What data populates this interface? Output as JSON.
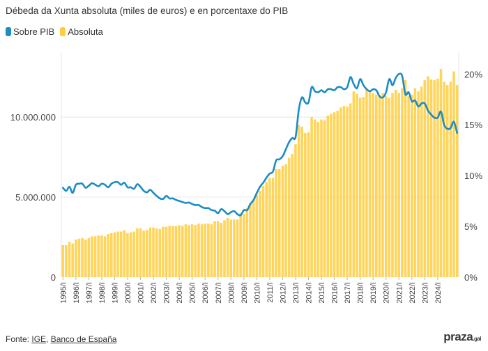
{
  "title": "Débeda da Xunta absoluta (miles de euros) e en porcentaxe do PIB",
  "legend": [
    {
      "label": "Sobre PIB",
      "color": "#1b8cc4"
    },
    {
      "label": "Absoluta",
      "color": "#ffcd3c"
    }
  ],
  "footer": {
    "prefix": "Fonte: ",
    "sources": [
      "IGE",
      "Banco de España"
    ],
    "logo": "praza",
    "logo_suffix": ".gal"
  },
  "chart_data": {
    "type": "bar+line",
    "title": "Débeda da Xunta absoluta (miles de euros) e en porcentaxe do PIB",
    "x_start": "1995/I",
    "x_frequency": "quarterly",
    "x_tick_labels": [
      "1995/I",
      "1996/I",
      "1997/I",
      "1998/I",
      "1999/I",
      "2000/I",
      "2001/I",
      "2002/I",
      "2003/I",
      "2004/I",
      "2005/I",
      "2006/I",
      "2007/I",
      "2008/I",
      "2009/I",
      "2010/I",
      "2011/I",
      "2012/I",
      "2013/I",
      "2014/I",
      "2015/I",
      "2016/I",
      "2017/I",
      "2018/I",
      "2019/I",
      "2020/I",
      "2021/I",
      "2022/I",
      "2023/I",
      "2024/I"
    ],
    "left_axis": {
      "ticks": [
        0,
        5000000,
        10000000
      ],
      "tick_labels": [
        "0",
        "5.000.000",
        "10.000.000"
      ],
      "ylim": [
        0,
        13830000
      ]
    },
    "right_axis": {
      "ticks": [
        0,
        5,
        10,
        15,
        20
      ],
      "tick_labels": [
        "0%",
        "5%",
        "10%",
        "15%",
        "20%"
      ],
      "ylim": [
        0,
        21.8
      ]
    },
    "grid": true,
    "legend_position": "top-left",
    "series": [
      {
        "name": "Absoluta",
        "type": "bar",
        "axis": "left",
        "color": "#ffcd3c",
        "values": [
          2000000,
          2000000,
          2200000,
          2100000,
          2350000,
          2400000,
          2450000,
          2350000,
          2450000,
          2550000,
          2550000,
          2600000,
          2600000,
          2550000,
          2700000,
          2750000,
          2800000,
          2850000,
          2850000,
          2950000,
          2750000,
          2800000,
          2850000,
          3050000,
          3050000,
          2900000,
          2950000,
          3100000,
          3100000,
          3050000,
          3000000,
          3150000,
          3150000,
          3200000,
          3200000,
          3200000,
          3250000,
          3200000,
          3300000,
          3250000,
          3300000,
          3250000,
          3350000,
          3300000,
          3350000,
          3350000,
          3300000,
          3500000,
          3500000,
          3400000,
          3550000,
          3700000,
          3600000,
          3600000,
          3600000,
          4000000,
          3950000,
          4300000,
          4600000,
          4850000,
          5150000,
          5400000,
          5700000,
          5950000,
          6200000,
          6200000,
          6750000,
          6750000,
          6950000,
          7050000,
          7450000,
          7700000,
          8300000,
          9500000,
          9400000,
          9000000,
          9050000,
          10000000,
          9850000,
          9700000,
          9850000,
          9800000,
          10100000,
          10200000,
          10300000,
          10400000,
          10600000,
          10700000,
          10650000,
          10850000,
          11600000,
          11450000,
          11200000,
          11250000,
          11750000,
          11550000,
          11500000,
          11400000,
          11350000,
          11500000,
          11300000,
          11200000,
          11500000,
          11700000,
          11500000,
          11800000,
          12300000,
          11300000,
          11400000,
          11800000,
          11600000,
          11900000,
          12300000,
          12550000,
          12350000,
          12300000,
          12400000,
          13000000,
          12200000,
          12000000,
          12200000,
          12850000,
          12000000
        ]
      },
      {
        "name": "Sobre PIB",
        "type": "line",
        "axis": "right",
        "color": "#1b8cc4",
        "values": [
          8.8,
          8.5,
          8.9,
          8.3,
          9.1,
          9.2,
          9.2,
          8.8,
          9.0,
          9.25,
          9.1,
          8.95,
          9.2,
          9.1,
          8.85,
          9.2,
          9.35,
          9.35,
          9.1,
          9.3,
          8.85,
          8.85,
          8.7,
          9.15,
          8.9,
          8.5,
          8.35,
          8.6,
          8.3,
          8.0,
          7.75,
          7.7,
          8.0,
          7.75,
          7.75,
          7.6,
          7.5,
          7.4,
          7.3,
          7.35,
          7.2,
          7.1,
          7.1,
          6.9,
          6.8,
          6.8,
          6.6,
          6.55,
          6.3,
          6.7,
          6.5,
          6.2,
          6.4,
          6.5,
          6.2,
          6.1,
          6.6,
          6.6,
          7.2,
          7.6,
          8.3,
          8.9,
          9.3,
          9.8,
          10.2,
          10.4,
          11.5,
          11.6,
          11.9,
          12.6,
          13.3,
          13.7,
          13.8,
          16.5,
          17.7,
          17.2,
          17.2,
          18.7,
          18.3,
          18.2,
          18.4,
          18.2,
          18.5,
          18.5,
          18.4,
          18.7,
          18.7,
          18.5,
          18.7,
          19.7,
          19.0,
          18.6,
          19.5,
          18.9,
          18.5,
          18.3,
          18.5,
          18.4,
          17.8,
          17.7,
          18.2,
          19.5,
          18.9,
          19.6,
          20.0,
          19.8,
          18.0,
          18.2,
          17.3,
          17.4,
          16.8,
          17.1,
          17.1,
          16.4,
          16.0,
          15.7,
          15.7,
          16.3,
          15.0,
          14.6,
          14.7,
          15.3,
          14.2
        ]
      }
    ]
  }
}
